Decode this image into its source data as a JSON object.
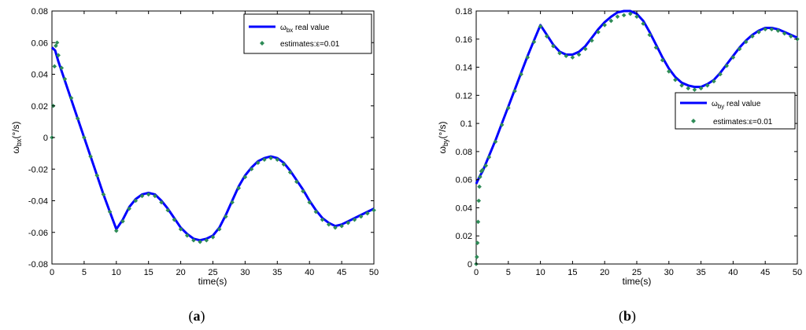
{
  "colors": {
    "real": "#0000ff",
    "est": "#2e8b57",
    "axes": "#000000"
  },
  "chart_data": [
    {
      "type": "line",
      "panel_label": {
        "open": "(",
        "letter": "a",
        "close": ")"
      },
      "xlabel": "time(s)",
      "ylabel": {
        "base": "ω",
        "sub": "bx",
        "unit": "(°/s)"
      },
      "xlim": [
        0,
        50
      ],
      "ylim": [
        -0.08,
        0.08
      ],
      "xticks": [
        0,
        5,
        10,
        15,
        20,
        25,
        30,
        35,
        40,
        45,
        50
      ],
      "yticks": [
        -0.08,
        -0.06,
        -0.04,
        -0.02,
        0,
        0.02,
        0.04,
        0.06,
        0.08
      ],
      "ytick_labels": [
        "-0.08",
        "-0.06",
        "-0.04",
        "-0.02",
        "0",
        "0.02",
        "0.04",
        "0.06",
        "0.08"
      ],
      "grid": false,
      "legend_position": "top-right",
      "legend": [
        {
          "base": "ω",
          "sub": "bx",
          "rest": " real value",
          "style": "line"
        },
        {
          "text": "estimates:ε=0.01",
          "style": "marker"
        }
      ],
      "series": [
        {
          "name": "ωbx real value",
          "style": "line",
          "x": [
            0,
            0.5,
            1,
            2,
            3,
            4,
            5,
            6,
            7,
            8,
            9,
            10,
            11,
            12,
            13,
            14,
            15,
            16,
            17,
            18,
            19,
            20,
            21,
            22,
            23,
            24,
            25,
            26,
            27,
            28,
            29,
            30,
            31,
            32,
            33,
            34,
            35,
            36,
            37,
            38,
            39,
            40,
            41,
            42,
            43,
            44,
            45,
            46,
            47,
            48,
            49,
            50
          ],
          "y": [
            0.057,
            0.055,
            0.048,
            0.036,
            0.024,
            0.012,
            0.0,
            -0.012,
            -0.024,
            -0.036,
            -0.047,
            -0.058,
            -0.052,
            -0.044,
            -0.039,
            -0.036,
            -0.035,
            -0.036,
            -0.04,
            -0.045,
            -0.051,
            -0.057,
            -0.061,
            -0.064,
            -0.065,
            -0.064,
            -0.062,
            -0.057,
            -0.049,
            -0.04,
            -0.031,
            -0.024,
            -0.019,
            -0.015,
            -0.013,
            -0.012,
            -0.013,
            -0.016,
            -0.021,
            -0.027,
            -0.033,
            -0.04,
            -0.046,
            -0.051,
            -0.054,
            -0.056,
            -0.055,
            -0.053,
            -0.051,
            -0.049,
            -0.047,
            -0.045
          ]
        },
        {
          "name": "estimates:ε=0.01",
          "style": "marker",
          "x": [
            0,
            0.2,
            0.4,
            0.6,
            0.8,
            1.0,
            1.5,
            2,
            3,
            4,
            5,
            6,
            7,
            8,
            9,
            10,
            11,
            12,
            13,
            14,
            15,
            16,
            17,
            18,
            19,
            20,
            21,
            22,
            23,
            24,
            25,
            26,
            27,
            28,
            29,
            30,
            31,
            32,
            33,
            34,
            35,
            36,
            37,
            38,
            39,
            40,
            41,
            42,
            43,
            44,
            45,
            46,
            47,
            48,
            49,
            50
          ],
          "y": [
            0.0,
            0.02,
            0.045,
            0.058,
            0.06,
            0.052,
            0.044,
            0.037,
            0.025,
            0.012,
            0.0,
            -0.012,
            -0.024,
            -0.036,
            -0.047,
            -0.059,
            -0.053,
            -0.045,
            -0.04,
            -0.037,
            -0.036,
            -0.037,
            -0.041,
            -0.046,
            -0.052,
            -0.058,
            -0.062,
            -0.065,
            -0.066,
            -0.065,
            -0.063,
            -0.058,
            -0.05,
            -0.041,
            -0.032,
            -0.025,
            -0.02,
            -0.016,
            -0.014,
            -0.013,
            -0.014,
            -0.017,
            -0.022,
            -0.028,
            -0.034,
            -0.041,
            -0.047,
            -0.052,
            -0.055,
            -0.057,
            -0.056,
            -0.054,
            -0.052,
            -0.05,
            -0.048,
            -0.046
          ]
        }
      ]
    },
    {
      "type": "line",
      "panel_label": {
        "open": "(",
        "letter": "b",
        "close": ")"
      },
      "xlabel": "time(s)",
      "ylabel": {
        "base": "ω",
        "sub": "by",
        "unit": "(°/s)"
      },
      "xlim": [
        0,
        50
      ],
      "ylim": [
        0,
        0.18
      ],
      "xticks": [
        0,
        5,
        10,
        15,
        20,
        25,
        30,
        35,
        40,
        45,
        50
      ],
      "yticks": [
        0,
        0.02,
        0.04,
        0.06,
        0.08,
        0.1,
        0.12,
        0.14,
        0.16,
        0.18
      ],
      "ytick_labels": [
        "0",
        "0.02",
        "0.04",
        "0.06",
        "0.08",
        "0.1",
        "0.12",
        "0.14",
        "0.16",
        "0.18"
      ],
      "grid": false,
      "legend_position": "middle-right",
      "legend": [
        {
          "base": "ω",
          "sub": "by",
          "rest": " real value",
          "style": "line"
        },
        {
          "text": "estimates:ε=0.01",
          "style": "marker"
        }
      ],
      "series": [
        {
          "name": "ωby real value",
          "style": "line",
          "x": [
            0,
            0.5,
            1,
            2,
            3,
            4,
            5,
            6,
            7,
            8,
            9,
            10,
            11,
            12,
            13,
            14,
            15,
            16,
            17,
            18,
            19,
            20,
            21,
            22,
            23,
            24,
            25,
            26,
            27,
            28,
            29,
            30,
            31,
            32,
            33,
            34,
            35,
            36,
            37,
            38,
            39,
            40,
            41,
            42,
            43,
            44,
            45,
            46,
            47,
            48,
            49,
            50
          ],
          "y": [
            0.057,
            0.062,
            0.066,
            0.077,
            0.088,
            0.1,
            0.112,
            0.124,
            0.136,
            0.148,
            0.159,
            0.17,
            0.163,
            0.156,
            0.151,
            0.149,
            0.149,
            0.151,
            0.155,
            0.161,
            0.167,
            0.172,
            0.176,
            0.179,
            0.18,
            0.18,
            0.178,
            0.173,
            0.165,
            0.156,
            0.147,
            0.139,
            0.133,
            0.129,
            0.127,
            0.126,
            0.126,
            0.128,
            0.131,
            0.136,
            0.142,
            0.148,
            0.154,
            0.159,
            0.163,
            0.166,
            0.168,
            0.168,
            0.167,
            0.165,
            0.163,
            0.161
          ]
        },
        {
          "name": "estimates:ε=0.01",
          "style": "marker",
          "x": [
            0,
            0.1,
            0.2,
            0.3,
            0.4,
            0.5,
            0.6,
            0.8,
            1.0,
            1.5,
            2,
            3,
            4,
            5,
            6,
            7,
            8,
            9,
            10,
            11,
            12,
            13,
            14,
            15,
            16,
            17,
            18,
            19,
            20,
            21,
            22,
            23,
            24,
            25,
            26,
            27,
            28,
            29,
            30,
            31,
            32,
            33,
            34,
            35,
            36,
            37,
            38,
            39,
            40,
            41,
            42,
            43,
            44,
            45,
            46,
            47,
            48,
            49,
            50
          ],
          "y": [
            0.0,
            0.005,
            0.015,
            0.03,
            0.045,
            0.055,
            0.062,
            0.066,
            0.067,
            0.07,
            0.076,
            0.087,
            0.099,
            0.111,
            0.123,
            0.135,
            0.147,
            0.158,
            0.169,
            0.162,
            0.155,
            0.15,
            0.148,
            0.147,
            0.149,
            0.153,
            0.159,
            0.165,
            0.17,
            0.173,
            0.176,
            0.177,
            0.178,
            0.176,
            0.171,
            0.163,
            0.154,
            0.145,
            0.137,
            0.131,
            0.127,
            0.125,
            0.124,
            0.125,
            0.127,
            0.13,
            0.135,
            0.141,
            0.147,
            0.153,
            0.158,
            0.162,
            0.165,
            0.167,
            0.167,
            0.166,
            0.164,
            0.162,
            0.16
          ]
        }
      ]
    }
  ]
}
